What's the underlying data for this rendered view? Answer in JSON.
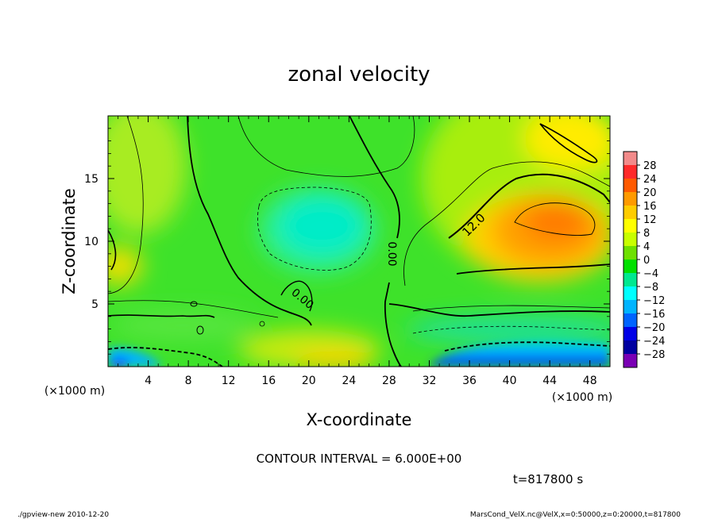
{
  "chart_data": {
    "type": "heatmap",
    "title": "zonal velocity",
    "xlabel": "X-coordinate",
    "ylabel": "Z-coordinate",
    "x_unit_label": "(×1000 m)",
    "z_unit_label": "(×1000 m)",
    "xlim": [
      0,
      50
    ],
    "ylim": [
      0,
      20
    ],
    "x_ticks": [
      "4",
      "8",
      "12",
      "16",
      "20",
      "24",
      "28",
      "32",
      "36",
      "40",
      "44",
      "48"
    ],
    "y_ticks": [
      "5",
      "10",
      "15"
    ],
    "contour_interval_text": "CONTOUR INTERVAL = 6.000E+00",
    "time_text": "t=817800 s",
    "contour_labels": [
      "12.0",
      "0.00",
      "0.00"
    ],
    "colorbar_labels": [
      "28",
      "24",
      "20",
      "16",
      "12",
      "8",
      "4",
      "0",
      "−4",
      "−8",
      "−12",
      "−16",
      "−20",
      "−24",
      "−28"
    ],
    "colorbar_colors": [
      "#f28a8a",
      "#ff2a2a",
      "#ff5a00",
      "#ff9a00",
      "#ffcc00",
      "#ffff00",
      "#c8ff00",
      "#6ee000",
      "#00e000",
      "#00e890",
      "#00ffff",
      "#00b4ff",
      "#0064ff",
      "#0000e6",
      "#0000a0",
      "#7a00b4"
    ]
  },
  "footer": {
    "left": "./gpview-new  2010-12-20",
    "right": "MarsCond_VelX.nc@VelX,x=0:50000,z=0:20000,t=817800"
  }
}
